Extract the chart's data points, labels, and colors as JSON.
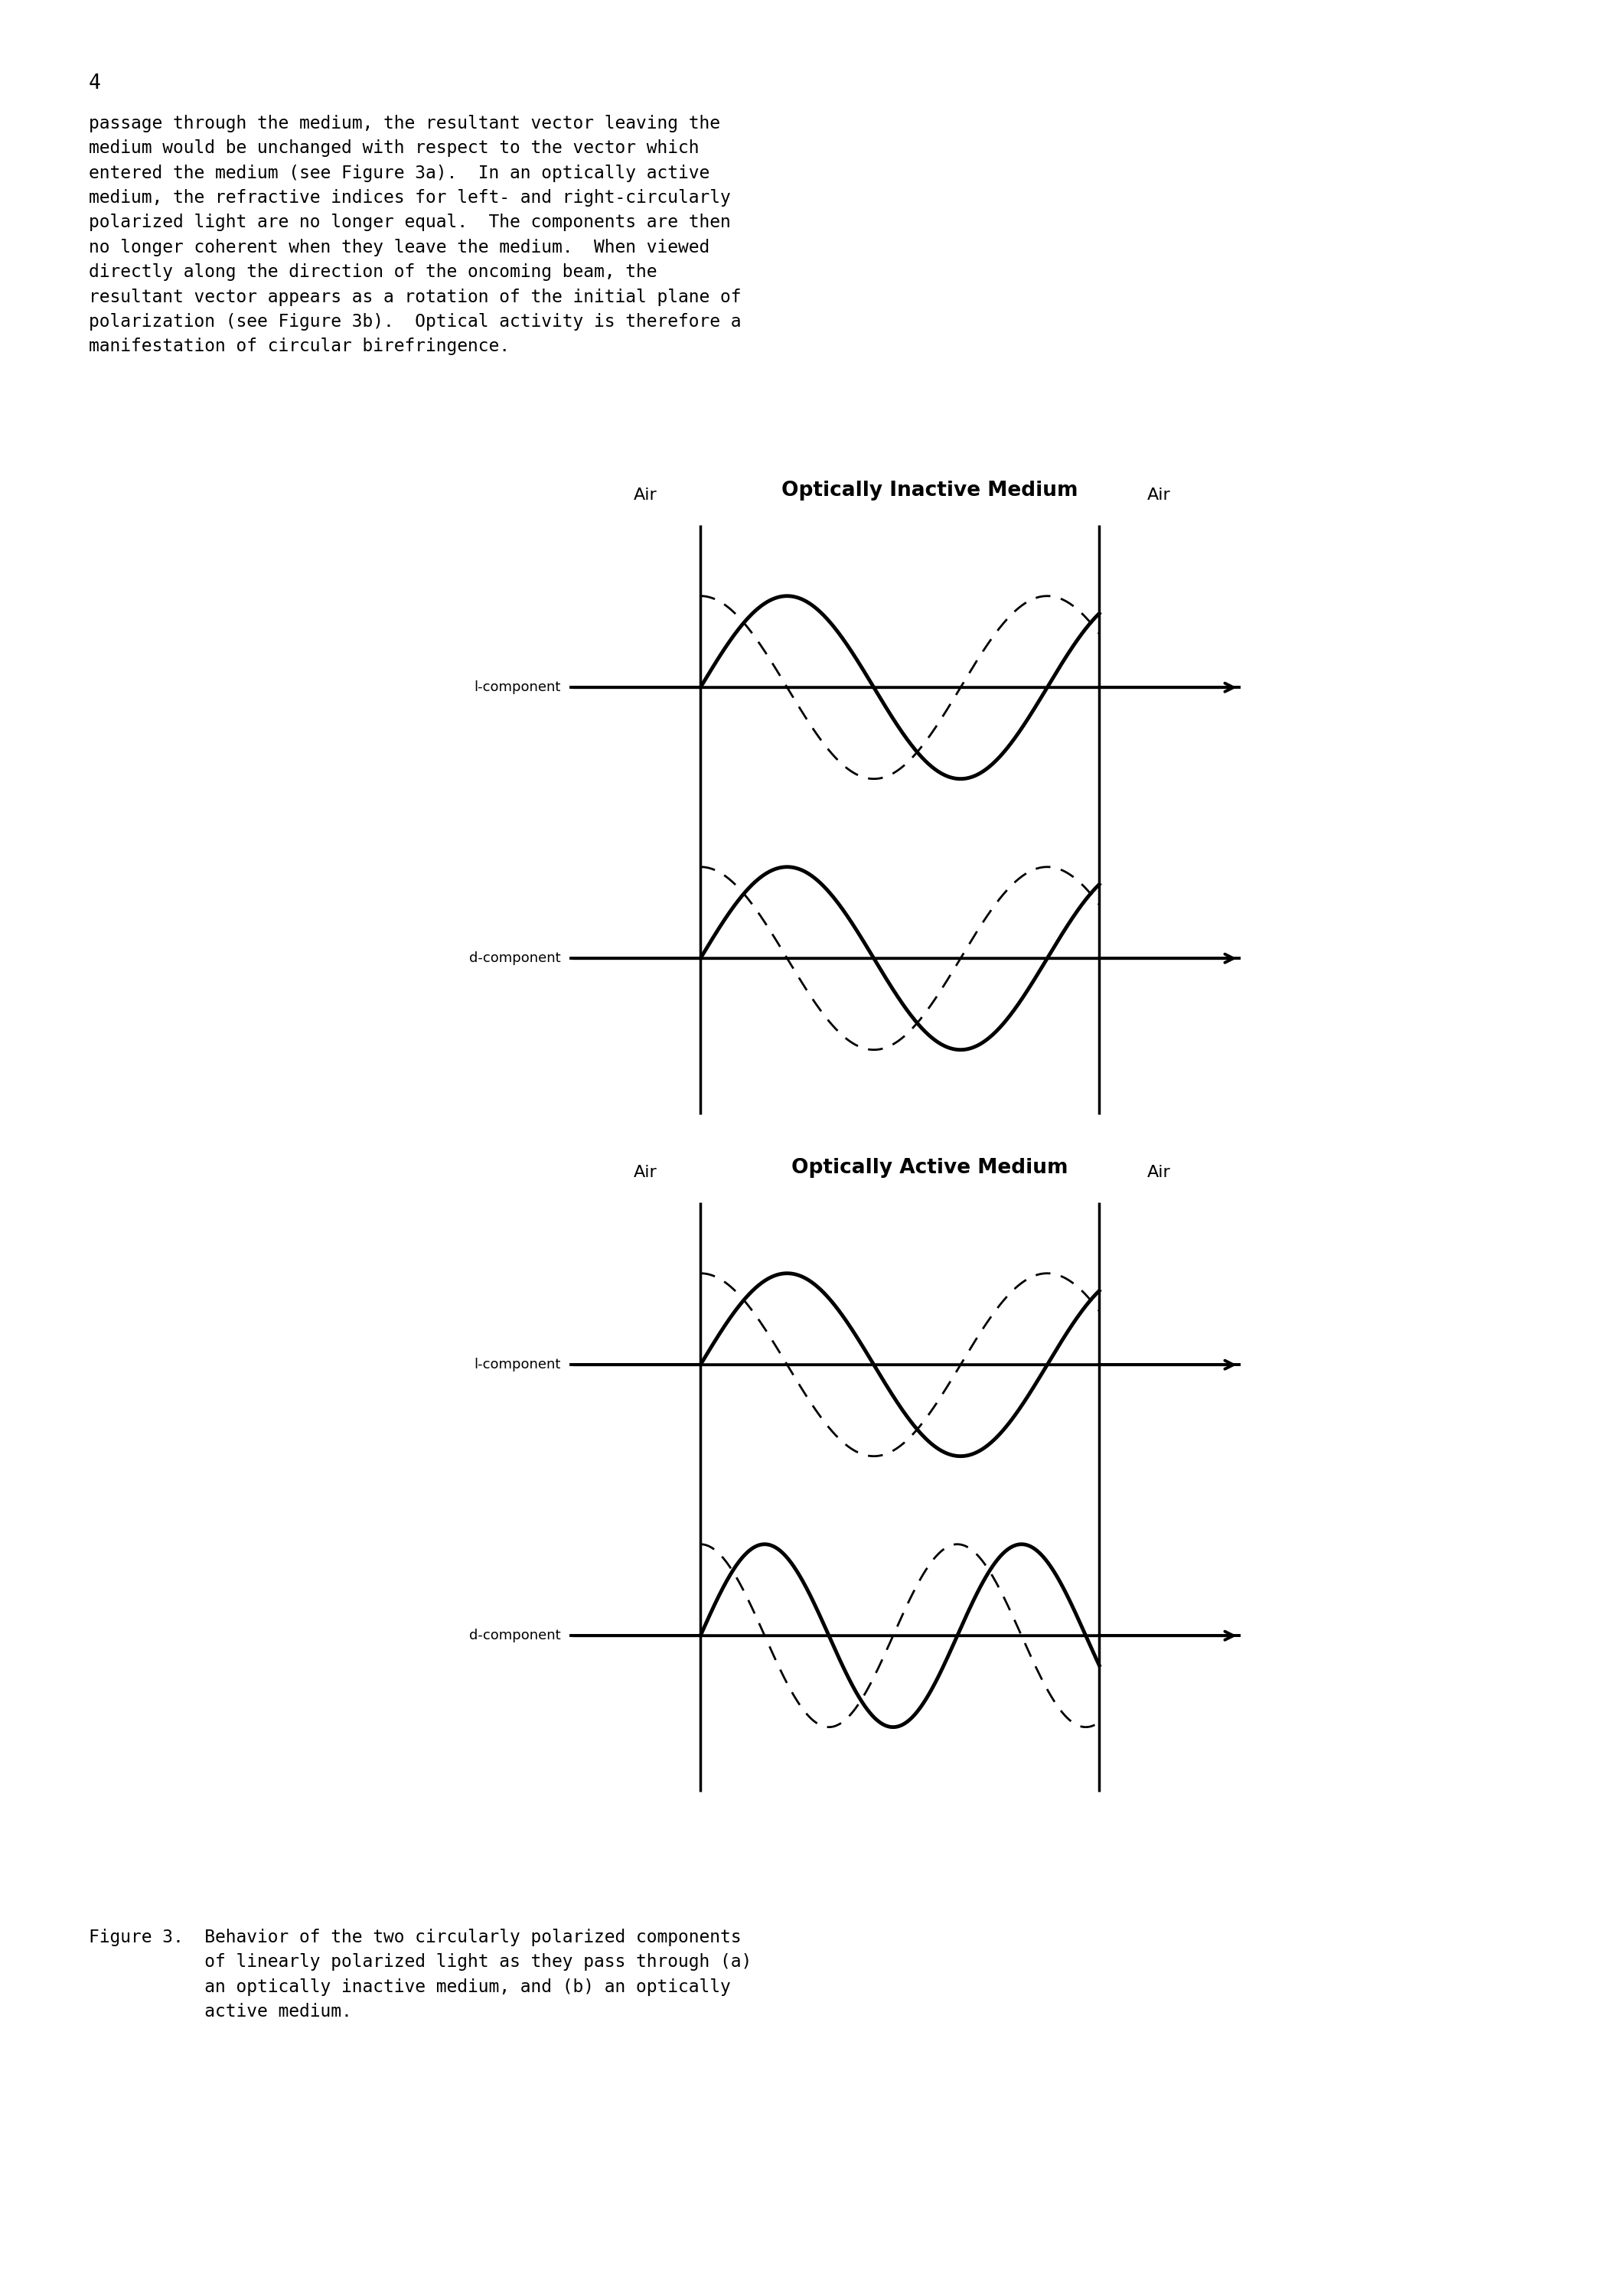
{
  "page_number": "4",
  "paragraph_lines": [
    "passage through the medium, the resultant vector leaving the",
    "medium would be unchanged with respect to the vector which",
    "entered the medium (see Figure 3a).  In an optically active",
    "medium, the refractive indices for left- and right-circularly",
    "polarized light are no longer equal.  The components are then",
    "no longer coherent when they leave the medium.  When viewed",
    "directly along the direction of the oncoming beam, the",
    "resultant vector appears as a rotation of the initial plane of",
    "polarization (see Figure 3b).  Optical activity is therefore a",
    "manifestation of circular birefringence."
  ],
  "fig_a_title": "Optically Inactive Medium",
  "fig_b_title": "Optically Active Medium",
  "air_label": "Air",
  "l_component_label": "l-component",
  "d_component_label": "d-component",
  "caption_lines": [
    "Figure 3.  Behavior of the two circularly polarized components",
    "           of linearly polarized light as they pass through (a)",
    "           an optically inactive medium, and (b) an optically",
    "           active medium."
  ],
  "background_color": "#ffffff",
  "text_color": "#000000",
  "fig_a_l_solid_phase": 0.0,
  "fig_a_l_dashed_phase": 1.5707963,
  "fig_a_d_solid_phase": 0.0,
  "fig_a_d_dashed_phase": 1.5707963,
  "fig_b_l_solid_phase": 0.0,
  "fig_b_l_dashed_phase": 1.5707963,
  "fig_b_d_solid_phase": 0.0,
  "fig_b_d_dashed_phase": 1.5707963,
  "inactive_d_freq_mult": 1.0,
  "active_d_freq_mult": 1.35
}
